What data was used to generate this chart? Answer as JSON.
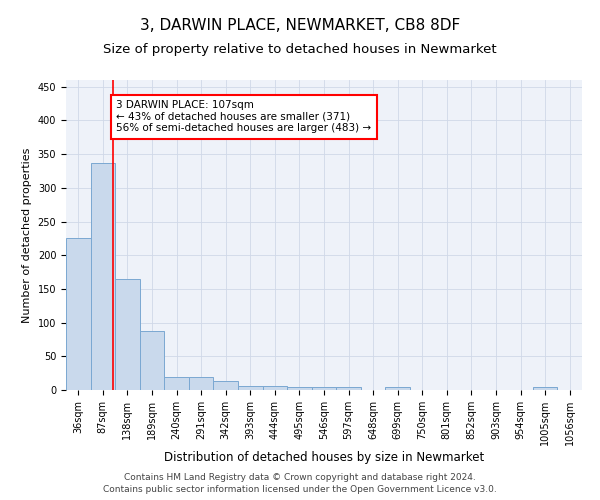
{
  "title": "3, DARWIN PLACE, NEWMARKET, CB8 8DF",
  "subtitle": "Size of property relative to detached houses in Newmarket",
  "xlabel": "Distribution of detached houses by size in Newmarket",
  "ylabel": "Number of detached properties",
  "categories": [
    "36sqm",
    "87sqm",
    "138sqm",
    "189sqm",
    "240sqm",
    "291sqm",
    "342sqm",
    "393sqm",
    "444sqm",
    "495sqm",
    "546sqm",
    "597sqm",
    "648sqm",
    "699sqm",
    "750sqm",
    "801sqm",
    "852sqm",
    "903sqm",
    "954sqm",
    "1005sqm",
    "1056sqm"
  ],
  "values": [
    225,
    337,
    165,
    88,
    20,
    20,
    14,
    6,
    6,
    5,
    5,
    4,
    0,
    4,
    0,
    0,
    0,
    0,
    0,
    4,
    0
  ],
  "bar_color": "#c9d9ec",
  "bar_edge_color": "#7aa8d2",
  "bar_width": 1.0,
  "red_line_x": 1.42,
  "annotation_text": "3 DARWIN PLACE: 107sqm\n← 43% of detached houses are smaller (371)\n56% of semi-detached houses are larger (483) →",
  "annotation_box_color": "white",
  "annotation_box_edge_color": "red",
  "ylim": [
    0,
    460
  ],
  "yticks": [
    0,
    50,
    100,
    150,
    200,
    250,
    300,
    350,
    400,
    450
  ],
  "grid_color": "#d0d8e8",
  "background_color": "#eef2f9",
  "footer_line1": "Contains HM Land Registry data © Crown copyright and database right 2024.",
  "footer_line2": "Contains public sector information licensed under the Open Government Licence v3.0.",
  "title_fontsize": 11,
  "subtitle_fontsize": 9.5,
  "xlabel_fontsize": 8.5,
  "ylabel_fontsize": 8,
  "footer_fontsize": 6.5,
  "tick_fontsize": 7
}
